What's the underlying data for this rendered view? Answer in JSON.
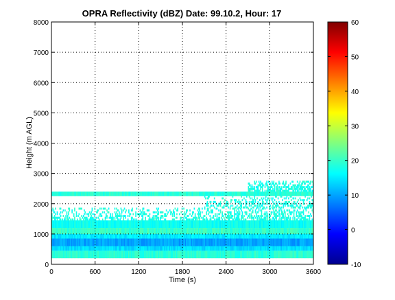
{
  "chart_data": {
    "type": "heatmap",
    "title": "OPRA Reflectivity (dBZ)  Date: 99.10.2, Hour: 17",
    "xlabel": "Time (s)",
    "ylabel": "Height (m AGL)",
    "xlim": [
      0,
      3600
    ],
    "ylim": [
      0,
      8000
    ],
    "xticks": [
      "0",
      "600",
      "1200",
      "1800",
      "2400",
      "3000",
      "3600"
    ],
    "yticks": [
      "0",
      "1000",
      "2000",
      "3000",
      "4000",
      "5000",
      "6000",
      "7000",
      "8000"
    ],
    "grid": true,
    "colorbar": {
      "colormap": "jet",
      "range": [
        -10,
        60
      ],
      "ticks": [
        "-10",
        "0",
        "10",
        "20",
        "30",
        "40",
        "50",
        "60"
      ]
    },
    "bands": [
      {
        "y0": 200,
        "y1": 450,
        "x0": 0,
        "x1": 3600,
        "dbz": 19
      },
      {
        "y0": 450,
        "y1": 600,
        "x0": 0,
        "x1": 3600,
        "dbz": 14
      },
      {
        "y0": 600,
        "y1": 850,
        "x0": 0,
        "x1": 3600,
        "dbz": 10
      },
      {
        "y0": 850,
        "y1": 1000,
        "x0": 0,
        "x1": 3600,
        "dbz": 15
      },
      {
        "y0": 1000,
        "y1": 1200,
        "x0": 0,
        "x1": 3600,
        "dbz": 20
      },
      {
        "y0": 1200,
        "y1": 1450,
        "x0": 0,
        "x1": 3600,
        "dbz": 17
      },
      {
        "y0": 2250,
        "y1": 2400,
        "x0": 0,
        "x1": 3600,
        "dbz": 19
      }
    ],
    "ragged_regions": [
      {
        "y0": 1450,
        "y1": 1850,
        "x0": 0,
        "x1": 3600,
        "dbz": 18,
        "density": 0.45
      },
      {
        "y0": 1850,
        "y1": 2250,
        "x0": 2100,
        "x1": 3600,
        "dbz": 18,
        "density": 0.35
      },
      {
        "y0": 2400,
        "y1": 2750,
        "x0": 2700,
        "x1": 3600,
        "dbz": 18,
        "density": 0.5
      }
    ]
  }
}
